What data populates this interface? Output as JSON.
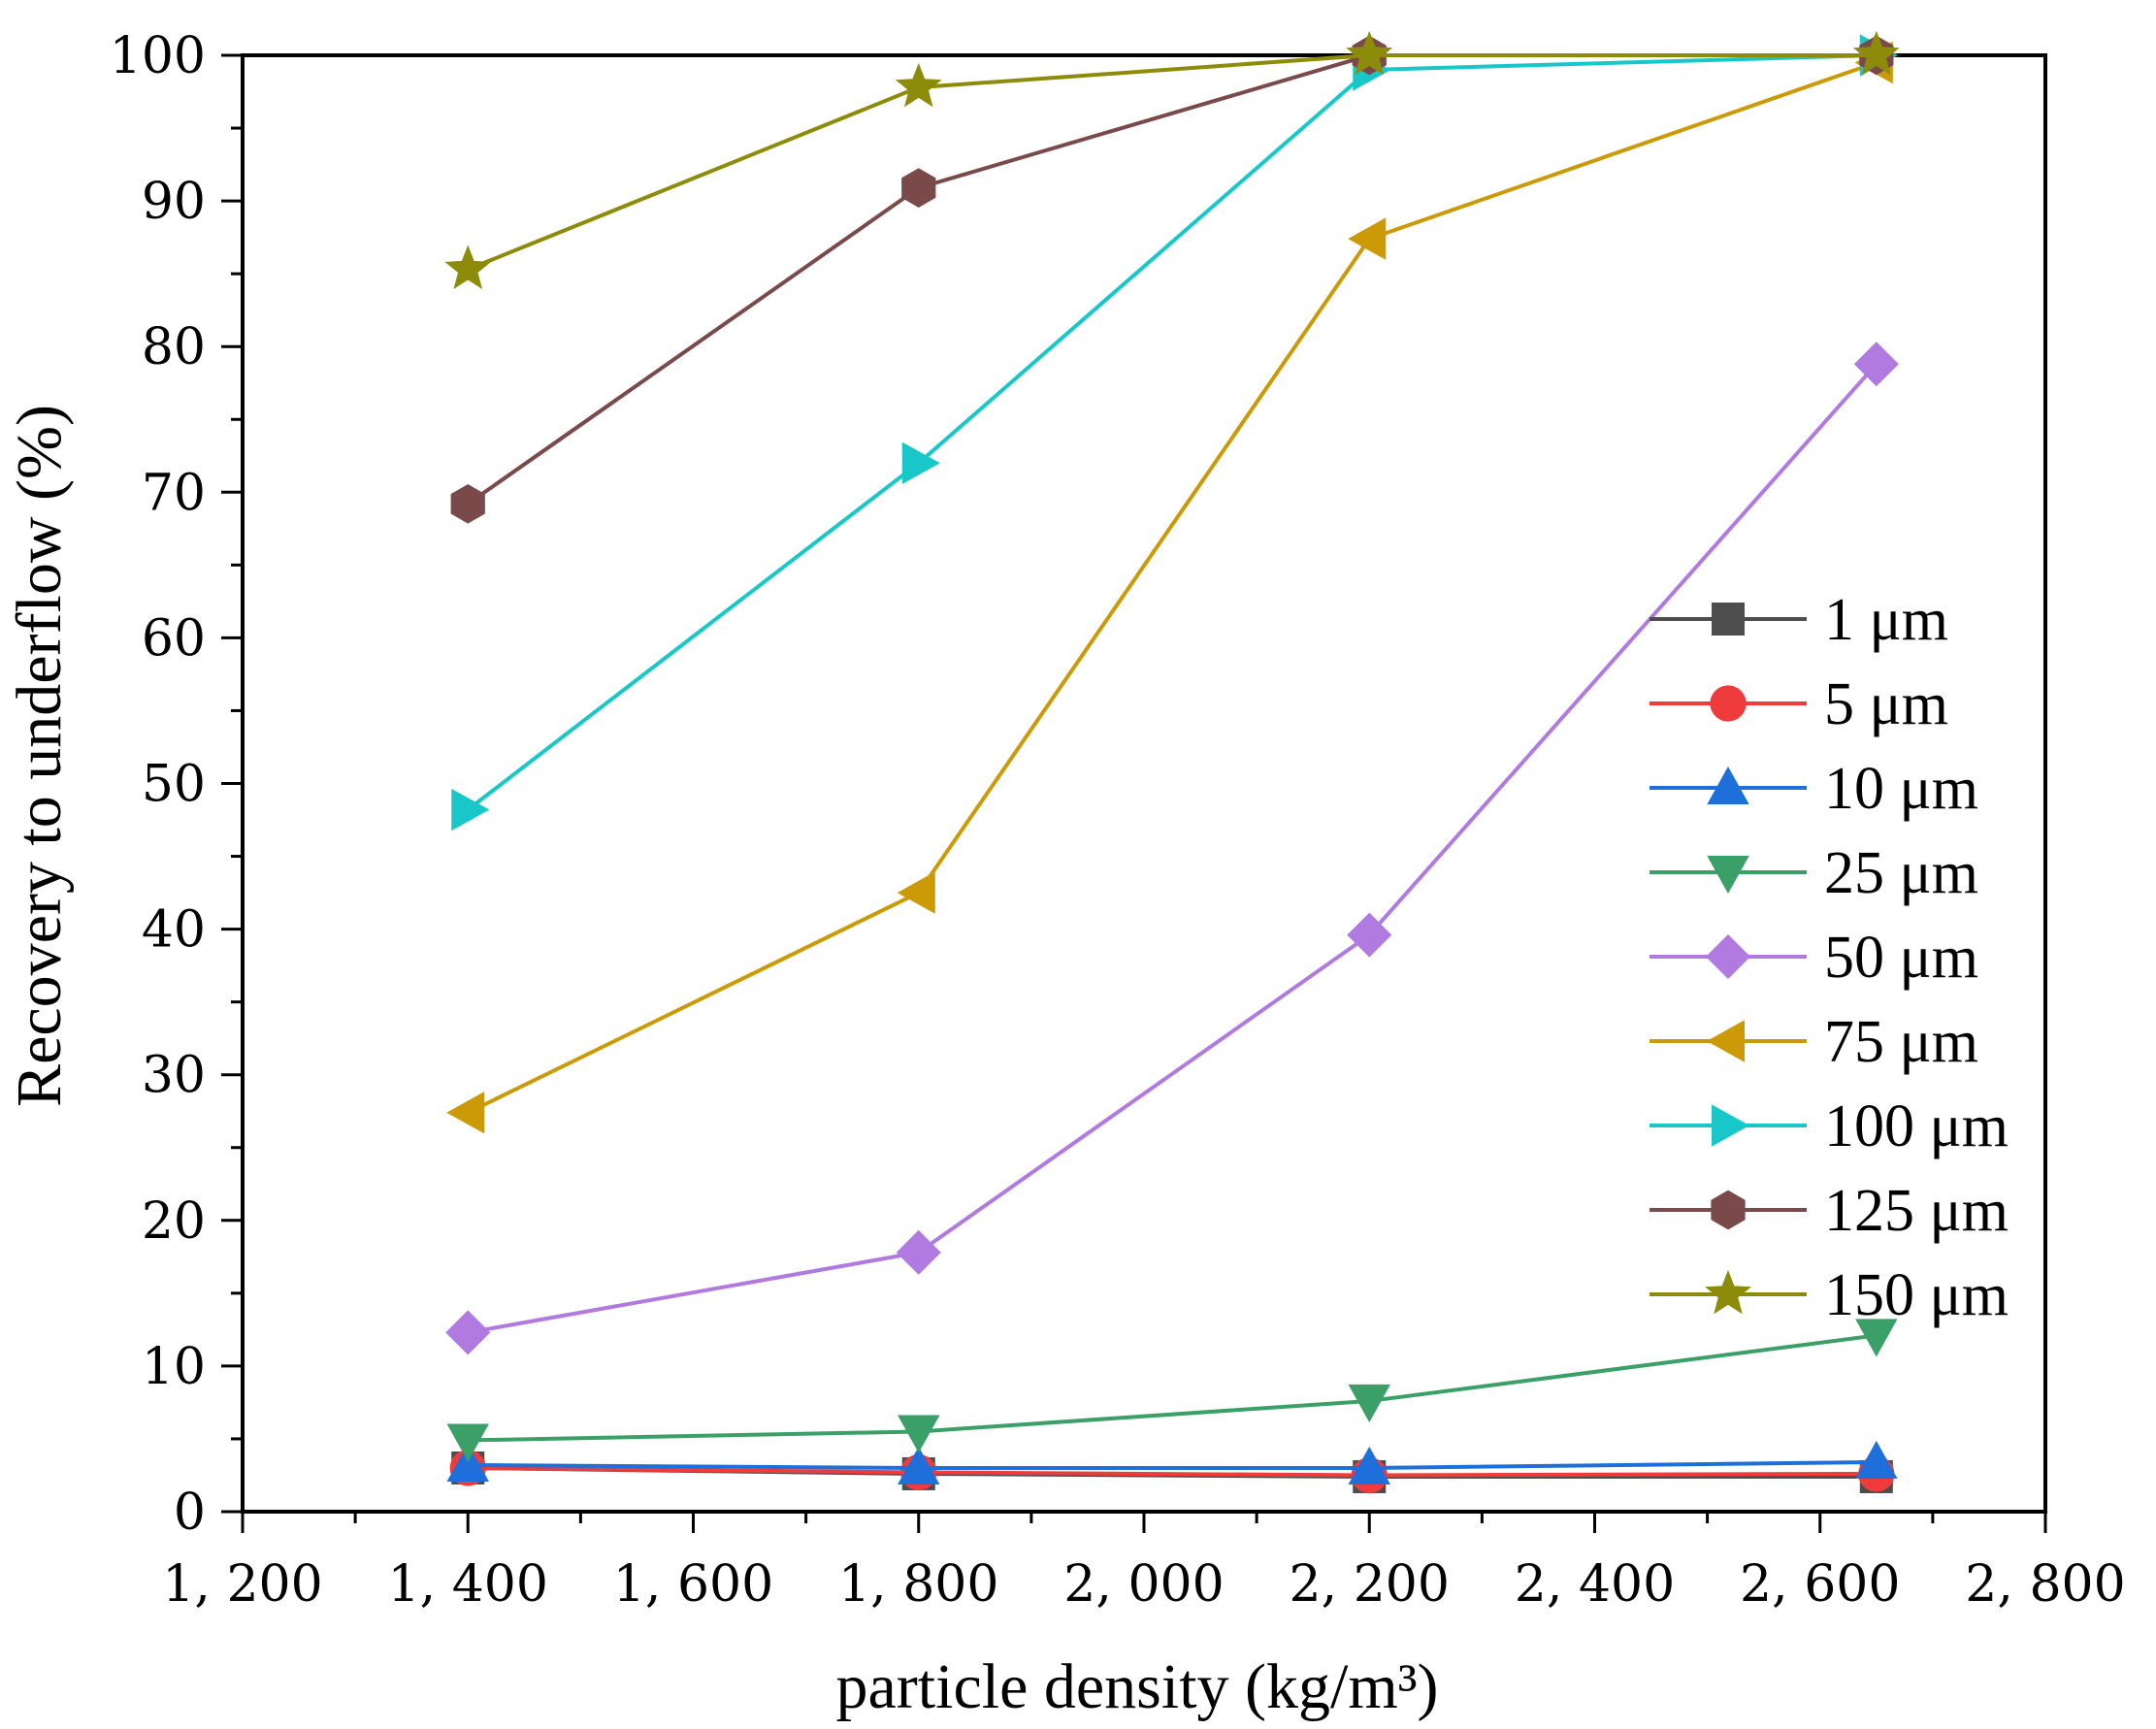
{
  "chart_data": {
    "type": "line",
    "title": "",
    "xlabel": "particle density (kg/m³)",
    "ylabel": "Recovery to underflow (%)",
    "xlim": [
      1200,
      2800
    ],
    "ylim": [
      0,
      100
    ],
    "x_ticks": [
      1200,
      1400,
      1600,
      1800,
      2000,
      2200,
      2400,
      2600,
      2800
    ],
    "x_tick_labels": [
      "1, 200",
      "1, 400",
      "1, 600",
      "1, 800",
      "2, 000",
      "2, 200",
      "2, 400",
      "2, 600",
      "2, 800"
    ],
    "y_ticks": [
      0,
      10,
      20,
      30,
      40,
      50,
      60,
      70,
      80,
      90,
      100
    ],
    "y_tick_labels": [
      "0",
      "10",
      "20",
      "30",
      "40",
      "50",
      "60",
      "70",
      "80",
      "90",
      "100"
    ],
    "x": [
      1400,
      1800,
      2200,
      2650
    ],
    "legend_position": "right",
    "series": [
      {
        "name": "1 μm",
        "color": "#4d4d4d",
        "marker": "square",
        "values": [
          3.0,
          2.6,
          2.4,
          2.4
        ]
      },
      {
        "name": "5 μm",
        "color": "#ef3b3b",
        "marker": "circle",
        "values": [
          3.0,
          2.7,
          2.5,
          2.6
        ]
      },
      {
        "name": "10 μm",
        "color": "#1f6fdb",
        "marker": "triangle-up",
        "values": [
          3.2,
          3.0,
          3.0,
          3.4
        ]
      },
      {
        "name": "25 μm",
        "color": "#3aa067",
        "marker": "triangle-down",
        "values": [
          4.9,
          5.5,
          7.6,
          12.1
        ]
      },
      {
        "name": "50 μm",
        "color": "#b07ae0",
        "marker": "diamond",
        "values": [
          12.3,
          17.8,
          39.6,
          78.8
        ]
      },
      {
        "name": "75 μm",
        "color": "#cc9a06",
        "marker": "triangle-left",
        "values": [
          27.4,
          42.5,
          87.4,
          99.5
        ]
      },
      {
        "name": "100 μm",
        "color": "#18c8c8",
        "marker": "triangle-right",
        "values": [
          48.2,
          72.0,
          99.0,
          100.0
        ]
      },
      {
        "name": "125 μm",
        "color": "#7a4a4a",
        "marker": "hexagon",
        "values": [
          69.2,
          90.9,
          100.0,
          100.0
        ]
      },
      {
        "name": "150 μm",
        "color": "#8c8c0a",
        "marker": "star",
        "values": [
          85.3,
          97.8,
          100.0,
          100.0
        ]
      }
    ]
  }
}
